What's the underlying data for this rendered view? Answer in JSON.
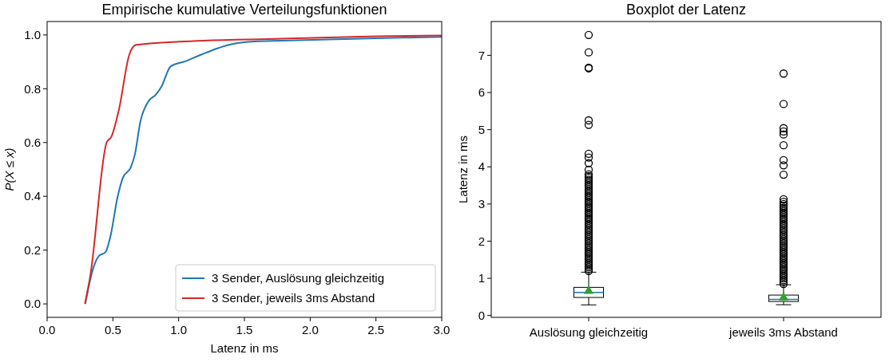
{
  "chart_data": [
    {
      "type": "line",
      "title": "Empirische kumulative Verteilungsfunktionen",
      "xlabel": "Latenz in ms",
      "ylabel": "P(X ≤ x)",
      "xlim": [
        0,
        3
      ],
      "ylim": [
        -0.05,
        1.05
      ],
      "xticks": [
        {
          "value": 0,
          "label": "0.0"
        },
        {
          "value": 0.5,
          "label": "0.5"
        },
        {
          "value": 1,
          "label": "1.0"
        },
        {
          "value": 1.5,
          "label": "1.5"
        },
        {
          "value": 2,
          "label": "2.0"
        },
        {
          "value": 2.5,
          "label": "2.5"
        },
        {
          "value": 3,
          "label": "3.0"
        }
      ],
      "yticks": [
        {
          "value": 0,
          "label": "0.0"
        },
        {
          "value": 0.2,
          "label": "0.2"
        },
        {
          "value": 0.4,
          "label": "0.4"
        },
        {
          "value": 0.6,
          "label": "0.6"
        },
        {
          "value": 0.8,
          "label": "0.8"
        },
        {
          "value": 1,
          "label": "1.0"
        }
      ],
      "legend": "bottom right",
      "series": [
        {
          "name": "3 Sender, Auslösung gleichzeitig",
          "color": "#1f77b4",
          "x": [
            0.29,
            0.302,
            0.342,
            0.393,
            0.443,
            0.484,
            0.534,
            0.575,
            0.636,
            0.666,
            0.71,
            0.767,
            0.828,
            0.868,
            0.939,
            1.05,
            1.172,
            1.293,
            1.415,
            1.577,
            1.78,
            2.5,
            3.0
          ],
          "values": [
            0,
            0.03,
            0.118,
            0.178,
            0.192,
            0.257,
            0.394,
            0.468,
            0.508,
            0.553,
            0.68,
            0.751,
            0.779,
            0.807,
            0.883,
            0.902,
            0.927,
            0.95,
            0.967,
            0.976,
            0.979,
            0.988,
            0.993
          ]
        },
        {
          "name": "3 Sender, jeweils 3ms Abstand",
          "color": "#d62728",
          "x": [
            0.287,
            0.328,
            0.453,
            0.488,
            0.545,
            0.625,
            0.676,
            1.0,
            1.78,
            2.5,
            3.0
          ],
          "values": [
            0,
            0.104,
            0.601,
            0.621,
            0.72,
            0.927,
            0.963,
            0.975,
            0.986,
            0.995,
            0.998
          ]
        }
      ]
    },
    {
      "type": "box",
      "title": "Boxplot der Latenz",
      "ylabel": "Latenz in ms",
      "categories": [
        "Auslösung gleichzeitig",
        "jeweils 3ms Abstand"
      ],
      "ylim": [
        -0.05,
        7.91
      ],
      "yticks": [
        0,
        1,
        2,
        3,
        4,
        5,
        6,
        7
      ],
      "boxes": [
        {
          "low": 0.285,
          "q1": 0.485,
          "median": 0.62,
          "q3": 0.757,
          "high": 1.165,
          "mean": 0.68,
          "outliers": [
            7.55,
            7.08,
            6.67,
            6.65,
            5.25,
            5.13,
            4.35,
            4.25,
            4.1,
            3.92,
            3.8,
            3.75,
            3.7,
            3.65,
            3.6,
            3.55,
            3.5,
            3.45,
            3.4,
            3.35,
            3.3,
            3.25,
            3.2,
            3.15,
            3.1,
            3.05,
            3.0,
            2.95,
            2.9,
            2.85,
            2.8,
            2.75,
            2.7,
            2.65,
            2.6,
            2.55,
            2.5,
            2.45,
            2.4,
            2.35,
            2.3,
            2.25,
            2.2,
            2.15,
            2.1,
            2.05,
            2.0,
            1.95,
            1.9,
            1.85,
            1.8,
            1.75,
            1.7,
            1.65,
            1.6,
            1.55,
            1.5,
            1.45,
            1.4,
            1.35,
            1.3,
            1.25,
            1.2
          ]
        },
        {
          "low": 0.29,
          "q1": 0.377,
          "median": 0.435,
          "q3": 0.549,
          "high": 0.827,
          "mean": 0.505,
          "outliers": [
            6.51,
            5.69,
            5.04,
            4.95,
            4.87,
            4.58,
            4.18,
            4.04,
            3.79,
            3.13,
            3.06,
            3.0,
            2.95,
            2.9,
            2.85,
            2.8,
            2.75,
            2.7,
            2.65,
            2.6,
            2.55,
            2.5,
            2.45,
            2.4,
            2.35,
            2.3,
            2.25,
            2.2,
            2.15,
            2.1,
            2.05,
            2.0,
            1.95,
            1.9,
            1.85,
            1.8,
            1.75,
            1.7,
            1.65,
            1.6,
            1.55,
            1.5,
            1.45,
            1.4,
            1.35,
            1.3,
            1.25,
            1.2,
            1.15,
            1.1,
            1.05,
            1.0,
            0.95,
            0.9,
            0.85
          ]
        }
      ]
    }
  ]
}
